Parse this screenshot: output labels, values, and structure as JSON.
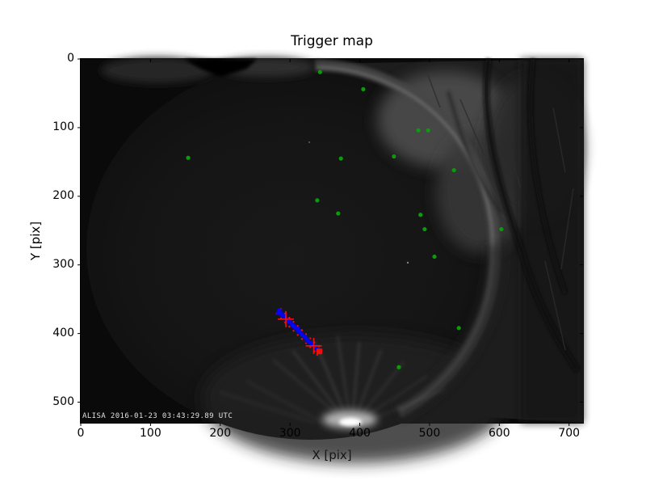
{
  "chart_data": {
    "type": "scatter",
    "title": "Trigger map",
    "xlabel": "X [pix]",
    "ylabel": "Y [pix]",
    "xlim": [
      0,
      720
    ],
    "ylim": [
      530,
      0
    ],
    "xticks": [
      0,
      100,
      200,
      300,
      400,
      500,
      600,
      700
    ],
    "yticks": [
      0,
      100,
      200,
      300,
      400,
      500
    ],
    "grid": false,
    "background_description": "grayscale all-sky fisheye night camera frame with bright horizon rim and tree silhouettes on the right",
    "overlay_text": "ALISA 2016-01-23 03:43:29.89 UTC",
    "colors": {
      "trigger_green": "#0a9c0a",
      "track_blue": "#0505ee",
      "marker_red": "#ee0f0f",
      "frame": "#000000"
    },
    "series": [
      {
        "name": "triggers",
        "marker": "circle",
        "color": "#0a9c0a",
        "size": 5.2,
        "points": [
          [
            343,
            19
          ],
          [
            405,
            44
          ],
          [
            484,
            104
          ],
          [
            498,
            104
          ],
          [
            449,
            142
          ],
          [
            535,
            162
          ],
          [
            154,
            144
          ],
          [
            373,
            145
          ],
          [
            339,
            206
          ],
          [
            369,
            225
          ],
          [
            487,
            227
          ],
          [
            493,
            248
          ],
          [
            603,
            248
          ],
          [
            507,
            288
          ],
          [
            542,
            392
          ],
          [
            456,
            449
          ]
        ]
      },
      {
        "name": "track-residuals",
        "marker": "dot",
        "color": "#ee0f0f",
        "size": 2.4,
        "points": [
          [
            287,
            364
          ],
          [
            281,
            371
          ],
          [
            293,
            371
          ],
          [
            287,
            378
          ],
          [
            299,
            377
          ],
          [
            293,
            384
          ],
          [
            305,
            383
          ],
          [
            299,
            390
          ],
          [
            311,
            389
          ],
          [
            305,
            396
          ],
          [
            317,
            395
          ],
          [
            311,
            402
          ],
          [
            323,
            401
          ],
          [
            317,
            408
          ],
          [
            329,
            407
          ],
          [
            323,
            414
          ],
          [
            335,
            413
          ],
          [
            329,
            420
          ],
          [
            341,
            419
          ],
          [
            335,
            426
          ],
          [
            345,
            424
          ],
          [
            339,
            431
          ]
        ]
      },
      {
        "name": "track",
        "marker": "square",
        "color": "#0505ee",
        "size": 4.6,
        "points": [
          [
            284,
            368
          ],
          [
            285,
            366
          ],
          [
            286,
            370
          ],
          [
            288,
            372
          ],
          [
            290,
            374
          ],
          [
            283,
            370
          ],
          [
            293,
            377
          ],
          [
            295,
            379
          ],
          [
            297,
            381
          ],
          [
            299,
            383
          ],
          [
            302,
            386
          ],
          [
            304,
            388
          ],
          [
            306,
            390
          ],
          [
            308,
            392
          ],
          [
            311,
            395
          ],
          [
            312,
            393
          ],
          [
            313,
            397
          ],
          [
            315,
            399
          ],
          [
            317,
            401
          ],
          [
            320,
            404
          ],
          [
            322,
            406
          ],
          [
            324,
            408
          ],
          [
            326,
            410
          ],
          [
            325,
            411
          ],
          [
            329,
            413
          ],
          [
            331,
            415
          ],
          [
            333,
            417
          ],
          [
            335,
            419
          ],
          [
            338,
            422
          ],
          [
            340,
            425
          ],
          [
            341,
            427
          ]
        ]
      },
      {
        "name": "fit-crosses",
        "marker": "plus",
        "color": "#ee0f0f",
        "size": 20,
        "points": [
          [
            294,
            379
          ],
          [
            334,
            418
          ]
        ]
      },
      {
        "name": "track-end",
        "marker": "filled-square",
        "color": "#ee0f0f",
        "size": 7,
        "points": [
          [
            342,
            426
          ]
        ]
      }
    ]
  }
}
